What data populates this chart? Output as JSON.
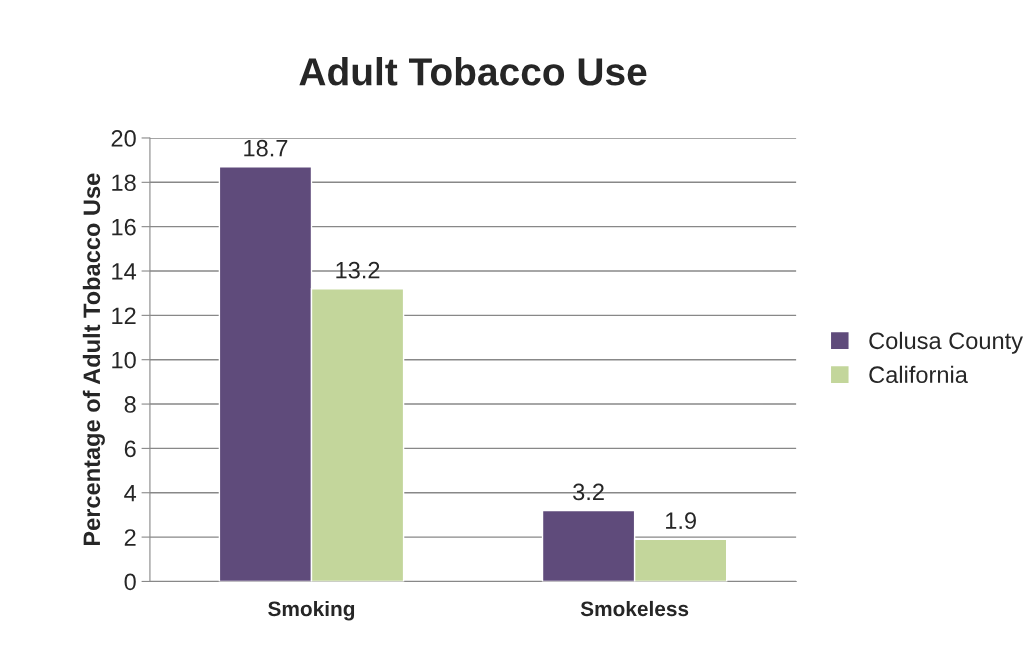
{
  "chart_data": {
    "type": "bar",
    "title": "Adult Tobacco Use",
    "ylabel": "Percentage of Adult Tobacco Use",
    "categories": [
      "Smoking",
      "Smokeless"
    ],
    "series": [
      {
        "name": "Colusa County",
        "color": "#5f4b7b",
        "values": [
          18.7,
          3.2
        ]
      },
      {
        "name": "California",
        "color": "#c3d69b",
        "values": [
          13.2,
          1.9
        ]
      }
    ],
    "ylim": [
      0,
      20
    ],
    "yticks": [
      0,
      2,
      4,
      6,
      8,
      10,
      12,
      14,
      16,
      18,
      20
    ],
    "grid": "y",
    "legend": "right",
    "data_labels": true
  }
}
